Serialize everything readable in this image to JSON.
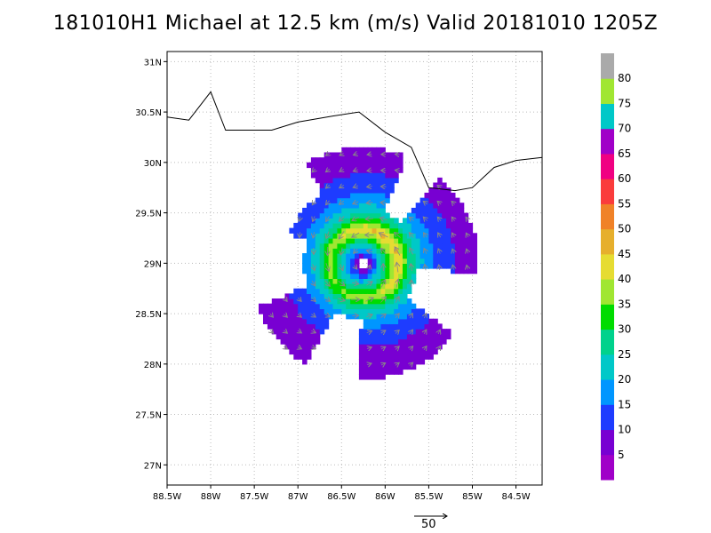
{
  "title": "181010H1 Michael at 12.5 km (m/s) Valid 20181010 1205Z",
  "reference_vector": {
    "label": "50",
    "speed": 50
  },
  "axes": {
    "lon_range": [
      -88.5,
      -84.2
    ],
    "lat_range": [
      26.8,
      31.1
    ],
    "x_ticks": [
      {
        "value": -88.5,
        "label": "88.5W"
      },
      {
        "value": -88,
        "label": "88W"
      },
      {
        "value": -87.5,
        "label": "87.5W"
      },
      {
        "value": -87,
        "label": "87W"
      },
      {
        "value": -86.5,
        "label": "86.5W"
      },
      {
        "value": -86,
        "label": "86W"
      },
      {
        "value": -85.5,
        "label": "85.5W"
      },
      {
        "value": -85,
        "label": "85W"
      },
      {
        "value": -84.5,
        "label": "84.5W"
      }
    ],
    "y_ticks": [
      {
        "value": 27,
        "label": "27N"
      },
      {
        "value": 27.5,
        "label": "27.5N"
      },
      {
        "value": 28,
        "label": "28N"
      },
      {
        "value": 28.5,
        "label": "28.5N"
      },
      {
        "value": 29,
        "label": "29N"
      },
      {
        "value": 29.5,
        "label": "29.5N"
      },
      {
        "value": 30,
        "label": "30N"
      },
      {
        "value": 30.5,
        "label": "30.5N"
      },
      {
        "value": 31,
        "label": "31N"
      }
    ],
    "grid": true
  },
  "colorbar": {
    "levels": [
      {
        "label": "",
        "color": "#a000c8"
      },
      {
        "label": "5",
        "color": "#7800d2"
      },
      {
        "label": "10",
        "color": "#1e3cff"
      },
      {
        "label": "15",
        "color": "#0096ff"
      },
      {
        "label": "20",
        "color": "#00c8c8"
      },
      {
        "label": "25",
        "color": "#00d28c"
      },
      {
        "label": "30",
        "color": "#00dc00"
      },
      {
        "label": "35",
        "color": "#a0e632"
      },
      {
        "label": "40",
        "color": "#e6dc32"
      },
      {
        "label": "45",
        "color": "#e6af2d"
      },
      {
        "label": "50",
        "color": "#f08228"
      },
      {
        "label": "55",
        "color": "#fa3c3c"
      },
      {
        "label": "60",
        "color": "#f00082"
      },
      {
        "label": "65",
        "color": "#a000c8"
      },
      {
        "label": "70",
        "color": "#00c8c8"
      },
      {
        "label": "75",
        "color": "#a0e632"
      },
      {
        "label": "80",
        "color": "#aaaaaa"
      }
    ]
  },
  "chart_data": {
    "type": "heatmap",
    "title": "181010H1 Michael at 12.5 km (m/s) Valid 20181010 1205Z",
    "field": "wind speed (m/s) with wind vectors",
    "storm_center": {
      "lon": -86.25,
      "lat": 29.0
    },
    "max_wind_ring": {
      "radius_deg": 0.35,
      "approx_speed": 42
    },
    "speed_range": [
      0,
      45
    ],
    "coastline": [
      [
        -88.5,
        30.45
      ],
      [
        -88.25,
        30.42
      ],
      [
        -88.0,
        30.7
      ],
      [
        -87.83,
        30.32
      ],
      [
        -87.3,
        30.32
      ],
      [
        -87.0,
        30.4
      ],
      [
        -86.6,
        30.46
      ],
      [
        -86.3,
        30.5
      ],
      [
        -86.0,
        30.3
      ],
      [
        -85.7,
        30.15
      ],
      [
        -85.5,
        29.75
      ],
      [
        -85.2,
        29.72
      ],
      [
        -85.0,
        29.75
      ],
      [
        -84.75,
        29.95
      ],
      [
        -84.5,
        30.02
      ],
      [
        -84.2,
        30.05
      ]
    ]
  }
}
